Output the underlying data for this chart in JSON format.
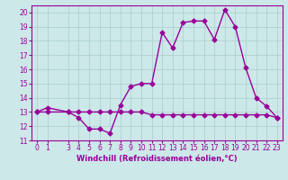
{
  "xlabel": "Windchill (Refroidissement éolien,°C)",
  "ylabel": "",
  "background_color": "#cce8e8",
  "line_color": "#990099",
  "grid_color": "#aacece",
  "hours": [
    0,
    1,
    3,
    4,
    5,
    6,
    7,
    8,
    9,
    10,
    11,
    12,
    13,
    14,
    15,
    16,
    17,
    18,
    19,
    20,
    21,
    22,
    23
  ],
  "temp_values": [
    13.0,
    13.3,
    13.0,
    12.6,
    11.8,
    11.8,
    11.5,
    13.5,
    14.8,
    15.0,
    15.0,
    18.6,
    17.5,
    19.3,
    19.4,
    19.4,
    18.1,
    20.2,
    19.0,
    16.1,
    14.0,
    13.4,
    12.6
  ],
  "windchill_values": [
    13.0,
    13.0,
    13.0,
    13.0,
    13.0,
    13.0,
    13.0,
    13.0,
    13.0,
    13.0,
    12.8,
    12.8,
    12.8,
    12.8,
    12.8,
    12.8,
    12.8,
    12.8,
    12.8,
    12.8,
    12.8,
    12.8,
    12.6
  ],
  "ylim": [
    11,
    20.5
  ],
  "yticks": [
    11,
    12,
    13,
    14,
    15,
    16,
    17,
    18,
    19,
    20
  ],
  "xlim": [
    -0.5,
    23.5
  ],
  "xticks": [
    0,
    1,
    3,
    4,
    5,
    6,
    7,
    8,
    9,
    10,
    11,
    12,
    13,
    14,
    15,
    16,
    17,
    18,
    19,
    20,
    21,
    22,
    23
  ],
  "marker": "D",
  "markersize": 2.5,
  "linewidth": 1.0,
  "tick_fontsize": 5.5,
  "xlabel_fontsize": 6.0
}
